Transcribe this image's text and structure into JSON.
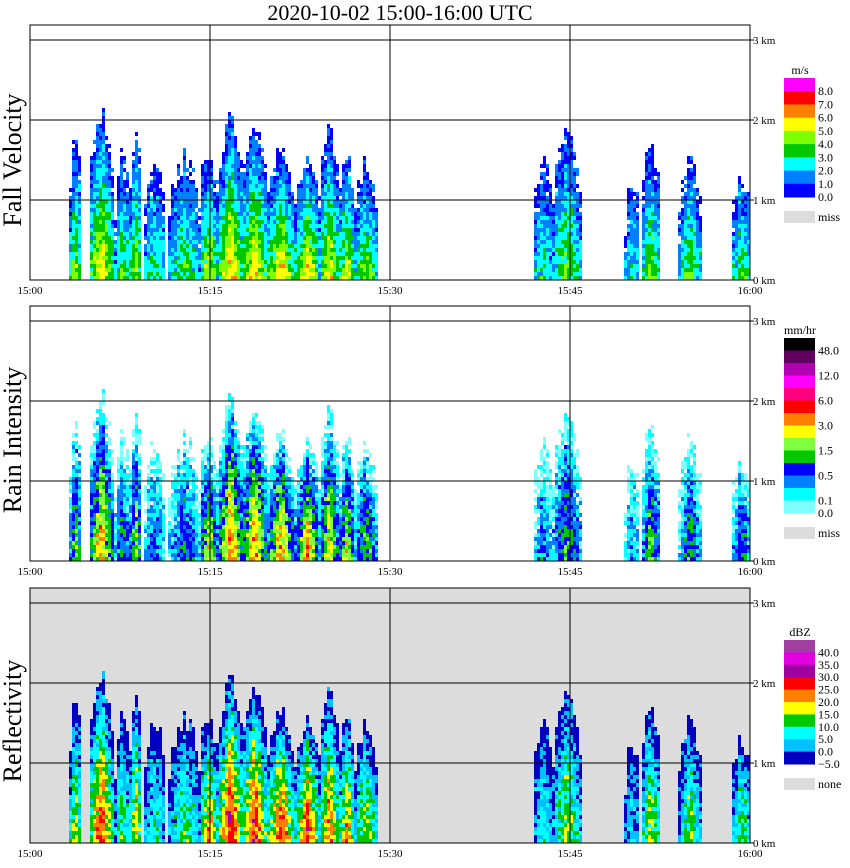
{
  "title": "2020-10-02   15:00-16:00 UTC",
  "chart_data": {
    "type": "heatmap",
    "x_ticks": [
      "15:00",
      "15:15",
      "15:30",
      "15:45",
      "16:00"
    ],
    "x_range_minutes": [
      0,
      60
    ],
    "y_ticks": [
      "0 km",
      "1 km",
      "2 km",
      "3 km"
    ],
    "y_range_km": [
      0,
      3.2
    ],
    "grid": true,
    "echo_cells": [
      {
        "start": 3.2,
        "end": 4.2,
        "top": 1.8,
        "peak": 0.6
      },
      {
        "start": 4.8,
        "end": 6.8,
        "top": 2.1,
        "peak": 0.85
      },
      {
        "start": 7,
        "end": 8.2,
        "top": 1.6,
        "peak": 0.5
      },
      {
        "start": 8.2,
        "end": 9.2,
        "top": 1.8,
        "peak": 0.7
      },
      {
        "start": 9.4,
        "end": 11.2,
        "top": 1.5,
        "peak": 0.4
      },
      {
        "start": 11.5,
        "end": 14,
        "top": 1.55,
        "peak": 0.45
      },
      {
        "start": 14,
        "end": 15.6,
        "top": 1.6,
        "peak": 0.7
      },
      {
        "start": 15.6,
        "end": 17.6,
        "top": 2.05,
        "peak": 0.95
      },
      {
        "start": 17.6,
        "end": 19.6,
        "top": 1.95,
        "peak": 0.9
      },
      {
        "start": 19.6,
        "end": 22,
        "top": 1.65,
        "peak": 0.85
      },
      {
        "start": 22,
        "end": 24,
        "top": 1.55,
        "peak": 0.85
      },
      {
        "start": 24,
        "end": 25.6,
        "top": 1.9,
        "peak": 0.8
      },
      {
        "start": 25.6,
        "end": 27,
        "top": 1.6,
        "peak": 0.75
      },
      {
        "start": 27,
        "end": 28.8,
        "top": 1.5,
        "peak": 0.6
      },
      {
        "start": 41.8,
        "end": 43.5,
        "top": 1.5,
        "peak": 0.35
      },
      {
        "start": 43.5,
        "end": 45.8,
        "top": 1.8,
        "peak": 0.55
      },
      {
        "start": 49.5,
        "end": 50.6,
        "top": 1.3,
        "peak": 0.3
      },
      {
        "start": 50.8,
        "end": 52.4,
        "top": 1.7,
        "peak": 0.6
      },
      {
        "start": 54,
        "end": 55.8,
        "top": 1.5,
        "peak": 0.5
      },
      {
        "start": 58.4,
        "end": 60,
        "top": 1.3,
        "peak": 0.5
      }
    ],
    "panels": [
      {
        "ylabel": "Fall Velocity",
        "unit": "m/s",
        "miss_label": "miss",
        "bg": "#ffffff",
        "colors": [
          "#ff00ff",
          "#ff0000",
          "#ff8000",
          "#ffff00",
          "#80ff00",
          "#00c800",
          "#00ffff",
          "#0080ff",
          "#0000ff"
        ],
        "labels": [
          "8.0",
          "7.0",
          "6.0",
          "5.0",
          "4.0",
          "3.0",
          "2.0",
          "1.0",
          "0.0"
        ],
        "label_every": 1
      },
      {
        "ylabel": "Rain Intensity",
        "unit": "mm/hr",
        "miss_label": "miss",
        "bg": "#ffffff",
        "colors": [
          "#000000",
          "#600060",
          "#b000b0",
          "#ff00ff",
          "#ff0080",
          "#ff0000",
          "#ff8000",
          "#ffff00",
          "#80ff40",
          "#00c800",
          "#0000ff",
          "#0080ff",
          "#00ffff",
          "#80ffff"
        ],
        "labels": [
          "48.0",
          "",
          "12.0",
          "",
          "6.0",
          "",
          "3.0",
          "",
          "1.5",
          "",
          "0.5",
          "",
          "0.1",
          "0.0"
        ],
        "label_every": 1
      },
      {
        "ylabel": "Reflectivity",
        "unit": "dBZ",
        "miss_label": "none",
        "bg": "#dcdcdc",
        "colors": [
          "#a040a0",
          "#e000e0",
          "#a000a0",
          "#ff0000",
          "#ff8000",
          "#ffff00",
          "#00c800",
          "#00ffff",
          "#00c0ff",
          "#0000c0"
        ],
        "labels": [
          "40.0",
          "35.0",
          "30.0",
          "25.0",
          "20.0",
          "15.0",
          "10.0",
          "5.0",
          "0.0",
          "−5.0"
        ],
        "label_every": 1
      }
    ]
  }
}
